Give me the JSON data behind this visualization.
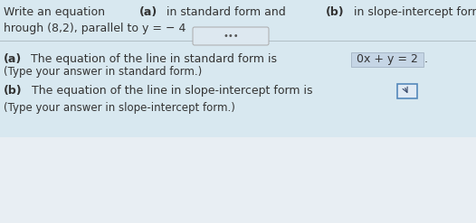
{
  "bg_top_color": "#d8e8f0",
  "bg_bottom_color": "#e8eef3",
  "divider_color": "#b0bec5",
  "text_color": "#333333",
  "title_normal1": "Write an equation ",
  "title_bold1": "(a)",
  "title_normal2": " in standard form and ",
  "title_bold2": "(b)",
  "title_normal3": " in slope-intercept form for the line described.",
  "subtitle": "hrough (8,2), parallel to y = − 4",
  "dots": "•••",
  "part_a_bold": "(a)",
  "part_a_text": " The equation of the line in standard form is ",
  "part_a_answer": "0x + y = 2",
  "part_a_dot": ".",
  "part_a_hint": "(Type your answer in standard form.)",
  "part_b_bold": "(b)",
  "part_b_text": " The equation of the line in slope-intercept form is ",
  "part_b_hint": "(Type your answer in slope-intercept form.)",
  "ans_a_box_color": "#c5d5e5",
  "ans_b_box_color": "#e0eaf4",
  "ans_b_border_color": "#5588bb",
  "font_size": 9.0,
  "hint_font_size": 8.5
}
